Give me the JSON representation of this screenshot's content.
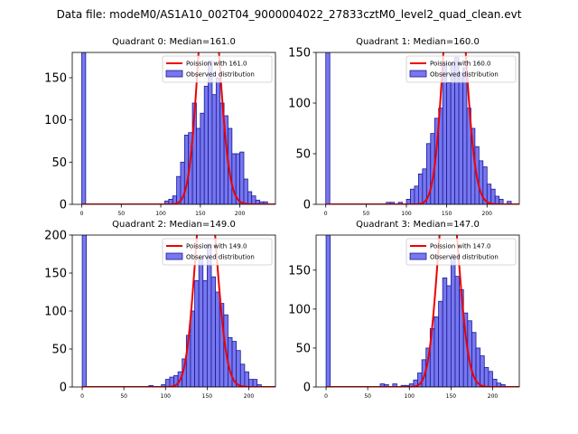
{
  "figure_title": "Data file: modeM0/AS1A10_002T04_9000004022_27833cztM0_level2_quad_clean.evt",
  "colors": {
    "bar_fill": "#7777ee",
    "bar_edge": "#1a1a99",
    "poisson_line": "#ee0000"
  },
  "chart_data": [
    {
      "type": "bar",
      "title": "Quadrant 0: Median=161.0",
      "median": 161.0,
      "xlim": [
        -12,
        245
      ],
      "ylim": [
        0,
        180
      ],
      "xticks": [
        0,
        50,
        100,
        150,
        200
      ],
      "yticks": [
        0,
        50,
        100,
        150
      ],
      "bin_width": 5,
      "zero_bin_value": 180,
      "bins": [
        {
          "x": 105,
          "y": 4
        },
        {
          "x": 110,
          "y": 6
        },
        {
          "x": 115,
          "y": 10
        },
        {
          "x": 120,
          "y": 33
        },
        {
          "x": 125,
          "y": 50
        },
        {
          "x": 130,
          "y": 82
        },
        {
          "x": 135,
          "y": 85
        },
        {
          "x": 140,
          "y": 120
        },
        {
          "x": 145,
          "y": 90
        },
        {
          "x": 150,
          "y": 108
        },
        {
          "x": 155,
          "y": 140
        },
        {
          "x": 160,
          "y": 170
        },
        {
          "x": 165,
          "y": 130
        },
        {
          "x": 170,
          "y": 150
        },
        {
          "x": 175,
          "y": 120
        },
        {
          "x": 180,
          "y": 105
        },
        {
          "x": 185,
          "y": 90
        },
        {
          "x": 190,
          "y": 60
        },
        {
          "x": 195,
          "y": 60
        },
        {
          "x": 200,
          "y": 62
        },
        {
          "x": 205,
          "y": 30
        },
        {
          "x": 210,
          "y": 15
        },
        {
          "x": 215,
          "y": 10
        },
        {
          "x": 220,
          "y": 5
        },
        {
          "x": 225,
          "y": 3
        },
        {
          "x": 230,
          "y": 3
        }
      ],
      "legend": [
        "Poission with 161.0",
        "Observed distribution"
      ]
    },
    {
      "type": "bar",
      "title": "Quadrant 1: Median=160.0",
      "median": 160.0,
      "xlim": [
        -12,
        240
      ],
      "ylim": [
        0,
        150
      ],
      "xticks": [
        0,
        50,
        100,
        150,
        200
      ],
      "yticks": [
        0,
        50,
        100,
        150
      ],
      "bin_width": 5,
      "zero_bin_value": 150,
      "bins": [
        {
          "x": 75,
          "y": 2
        },
        {
          "x": 80,
          "y": 2
        },
        {
          "x": 90,
          "y": 2
        },
        {
          "x": 100,
          "y": 5
        },
        {
          "x": 105,
          "y": 15
        },
        {
          "x": 110,
          "y": 18
        },
        {
          "x": 115,
          "y": 30
        },
        {
          "x": 120,
          "y": 35
        },
        {
          "x": 125,
          "y": 60
        },
        {
          "x": 130,
          "y": 70
        },
        {
          "x": 135,
          "y": 85
        },
        {
          "x": 140,
          "y": 95
        },
        {
          "x": 145,
          "y": 140
        },
        {
          "x": 150,
          "y": 120
        },
        {
          "x": 155,
          "y": 140
        },
        {
          "x": 160,
          "y": 145
        },
        {
          "x": 165,
          "y": 130
        },
        {
          "x": 170,
          "y": 135
        },
        {
          "x": 175,
          "y": 95
        },
        {
          "x": 180,
          "y": 75
        },
        {
          "x": 185,
          "y": 57
        },
        {
          "x": 190,
          "y": 43
        },
        {
          "x": 195,
          "y": 37
        },
        {
          "x": 200,
          "y": 20
        },
        {
          "x": 205,
          "y": 15
        },
        {
          "x": 210,
          "y": 8
        },
        {
          "x": 215,
          "y": 5
        },
        {
          "x": 225,
          "y": 3
        }
      ],
      "legend": [
        "Poission with 160.0",
        "Observed distribution"
      ]
    },
    {
      "type": "bar",
      "title": "Quadrant 2: Median=149.0",
      "median": 149.0,
      "xlim": [
        -12,
        232
      ],
      "ylim": [
        0,
        200
      ],
      "xticks": [
        0,
        50,
        100,
        150,
        200
      ],
      "yticks": [
        0,
        50,
        100,
        150,
        200
      ],
      "bin_width": 5,
      "zero_bin_value": 200,
      "bins": [
        {
          "x": 80,
          "y": 2
        },
        {
          "x": 95,
          "y": 3
        },
        {
          "x": 100,
          "y": 10
        },
        {
          "x": 105,
          "y": 13
        },
        {
          "x": 110,
          "y": 15
        },
        {
          "x": 115,
          "y": 20
        },
        {
          "x": 120,
          "y": 37
        },
        {
          "x": 125,
          "y": 68
        },
        {
          "x": 130,
          "y": 100
        },
        {
          "x": 135,
          "y": 140
        },
        {
          "x": 140,
          "y": 170
        },
        {
          "x": 145,
          "y": 140
        },
        {
          "x": 150,
          "y": 188
        },
        {
          "x": 155,
          "y": 145
        },
        {
          "x": 160,
          "y": 125
        },
        {
          "x": 165,
          "y": 110
        },
        {
          "x": 170,
          "y": 95
        },
        {
          "x": 175,
          "y": 65
        },
        {
          "x": 180,
          "y": 60
        },
        {
          "x": 185,
          "y": 48
        },
        {
          "x": 190,
          "y": 30
        },
        {
          "x": 195,
          "y": 20
        },
        {
          "x": 200,
          "y": 10
        },
        {
          "x": 205,
          "y": 10
        },
        {
          "x": 210,
          "y": 3
        }
      ],
      "legend": [
        "Poission with 149.0",
        "Observed distribution"
      ]
    },
    {
      "type": "bar",
      "title": "Quadrant 3: Median=147.0",
      "median": 147.0,
      "xlim": [
        -12,
        232
      ],
      "ylim": [
        0,
        195
      ],
      "xticks": [
        0,
        50,
        100,
        150,
        200
      ],
      "yticks": [
        0,
        50,
        100,
        150
      ],
      "bin_width": 5,
      "zero_bin_value": 195,
      "bins": [
        {
          "x": 65,
          "y": 4
        },
        {
          "x": 70,
          "y": 3
        },
        {
          "x": 80,
          "y": 4
        },
        {
          "x": 90,
          "y": 2
        },
        {
          "x": 95,
          "y": 2
        },
        {
          "x": 100,
          "y": 4
        },
        {
          "x": 105,
          "y": 9
        },
        {
          "x": 110,
          "y": 18
        },
        {
          "x": 115,
          "y": 35
        },
        {
          "x": 120,
          "y": 50
        },
        {
          "x": 125,
          "y": 75
        },
        {
          "x": 130,
          "y": 90
        },
        {
          "x": 135,
          "y": 110
        },
        {
          "x": 140,
          "y": 140
        },
        {
          "x": 145,
          "y": 130
        },
        {
          "x": 150,
          "y": 170
        },
        {
          "x": 155,
          "y": 142
        },
        {
          "x": 160,
          "y": 125
        },
        {
          "x": 165,
          "y": 95
        },
        {
          "x": 170,
          "y": 85
        },
        {
          "x": 175,
          "y": 70
        },
        {
          "x": 180,
          "y": 50
        },
        {
          "x": 185,
          "y": 40
        },
        {
          "x": 190,
          "y": 25
        },
        {
          "x": 195,
          "y": 20
        },
        {
          "x": 200,
          "y": 10
        },
        {
          "x": 205,
          "y": 5
        },
        {
          "x": 210,
          "y": 3
        }
      ],
      "legend": [
        "Poission with 147.0",
        "Observed distribution"
      ]
    }
  ]
}
